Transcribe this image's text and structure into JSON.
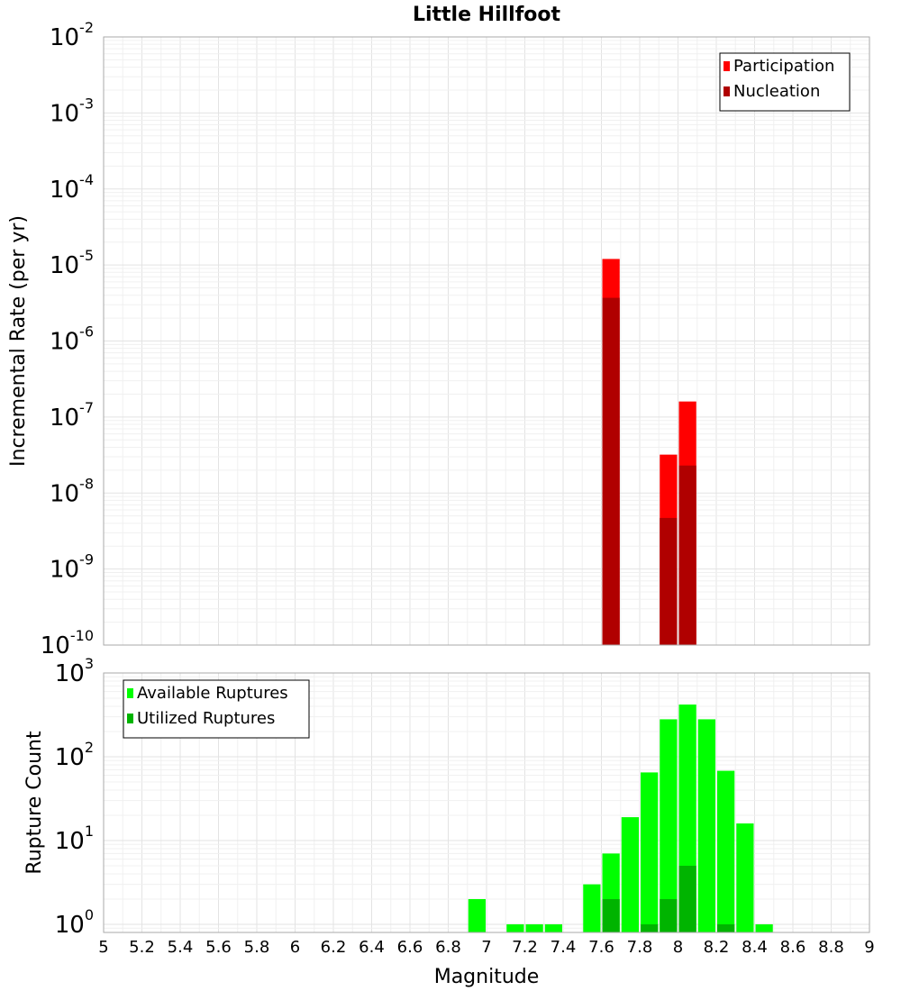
{
  "chart_data": [
    {
      "type": "bar",
      "title": "Little Hillfoot",
      "xlabel": "",
      "ylabel": "Incremental Rate (per yr)",
      "yscale": "log",
      "xlim": [
        5,
        9
      ],
      "ylim": [
        1e-10,
        0.01
      ],
      "y_tick_exponents": [
        -10,
        -9,
        -8,
        -7,
        -6,
        -5,
        -4,
        -3,
        -2
      ],
      "grid": true,
      "legend_position": "top-right",
      "bin_width": 0.1,
      "series": [
        {
          "name": "Participation",
          "color": "#ff0000",
          "points": [
            [
              7.65,
              1.2e-05
            ],
            [
              7.95,
              3.2e-08
            ],
            [
              8.05,
              1.6e-07
            ]
          ]
        },
        {
          "name": "Nucleation",
          "color": "#b00000",
          "points": [
            [
              7.65,
              3.7e-06
            ],
            [
              7.95,
              4.7e-09
            ],
            [
              8.05,
              2.3e-08
            ]
          ]
        }
      ]
    },
    {
      "type": "bar",
      "title": "",
      "xlabel": "Magnitude",
      "ylabel": "Rupture Count",
      "yscale": "log",
      "xlim": [
        5,
        9
      ],
      "ylim": [
        0.8,
        1000
      ],
      "y_tick_exponents": [
        0,
        1,
        2,
        3
      ],
      "x_ticks": [
        "5",
        "5.2",
        "5.4",
        "5.6",
        "5.8",
        "6",
        "6.2",
        "6.4",
        "6.6",
        "6.8",
        "7",
        "7.2",
        "7.4",
        "7.6",
        "7.8",
        "8",
        "8.2",
        "8.4",
        "8.6",
        "8.8",
        "9"
      ],
      "grid": true,
      "legend_position": "top-left",
      "bin_width": 0.1,
      "series": [
        {
          "name": "Available Ruptures",
          "color": "#00ff00",
          "points": [
            [
              6.95,
              2
            ],
            [
              7.15,
              1
            ],
            [
              7.25,
              1
            ],
            [
              7.35,
              1
            ],
            [
              7.55,
              3
            ],
            [
              7.65,
              7
            ],
            [
              7.75,
              19
            ],
            [
              7.85,
              65
            ],
            [
              7.95,
              280
            ],
            [
              8.05,
              420
            ],
            [
              8.15,
              280
            ],
            [
              8.25,
              68
            ],
            [
              8.35,
              16
            ],
            [
              8.45,
              1
            ]
          ]
        },
        {
          "name": "Utilized Ruptures",
          "color": "#00b400",
          "points": [
            [
              7.65,
              2
            ],
            [
              7.85,
              1
            ],
            [
              7.95,
              2
            ],
            [
              8.05,
              5
            ],
            [
              8.25,
              1
            ]
          ]
        }
      ]
    }
  ]
}
